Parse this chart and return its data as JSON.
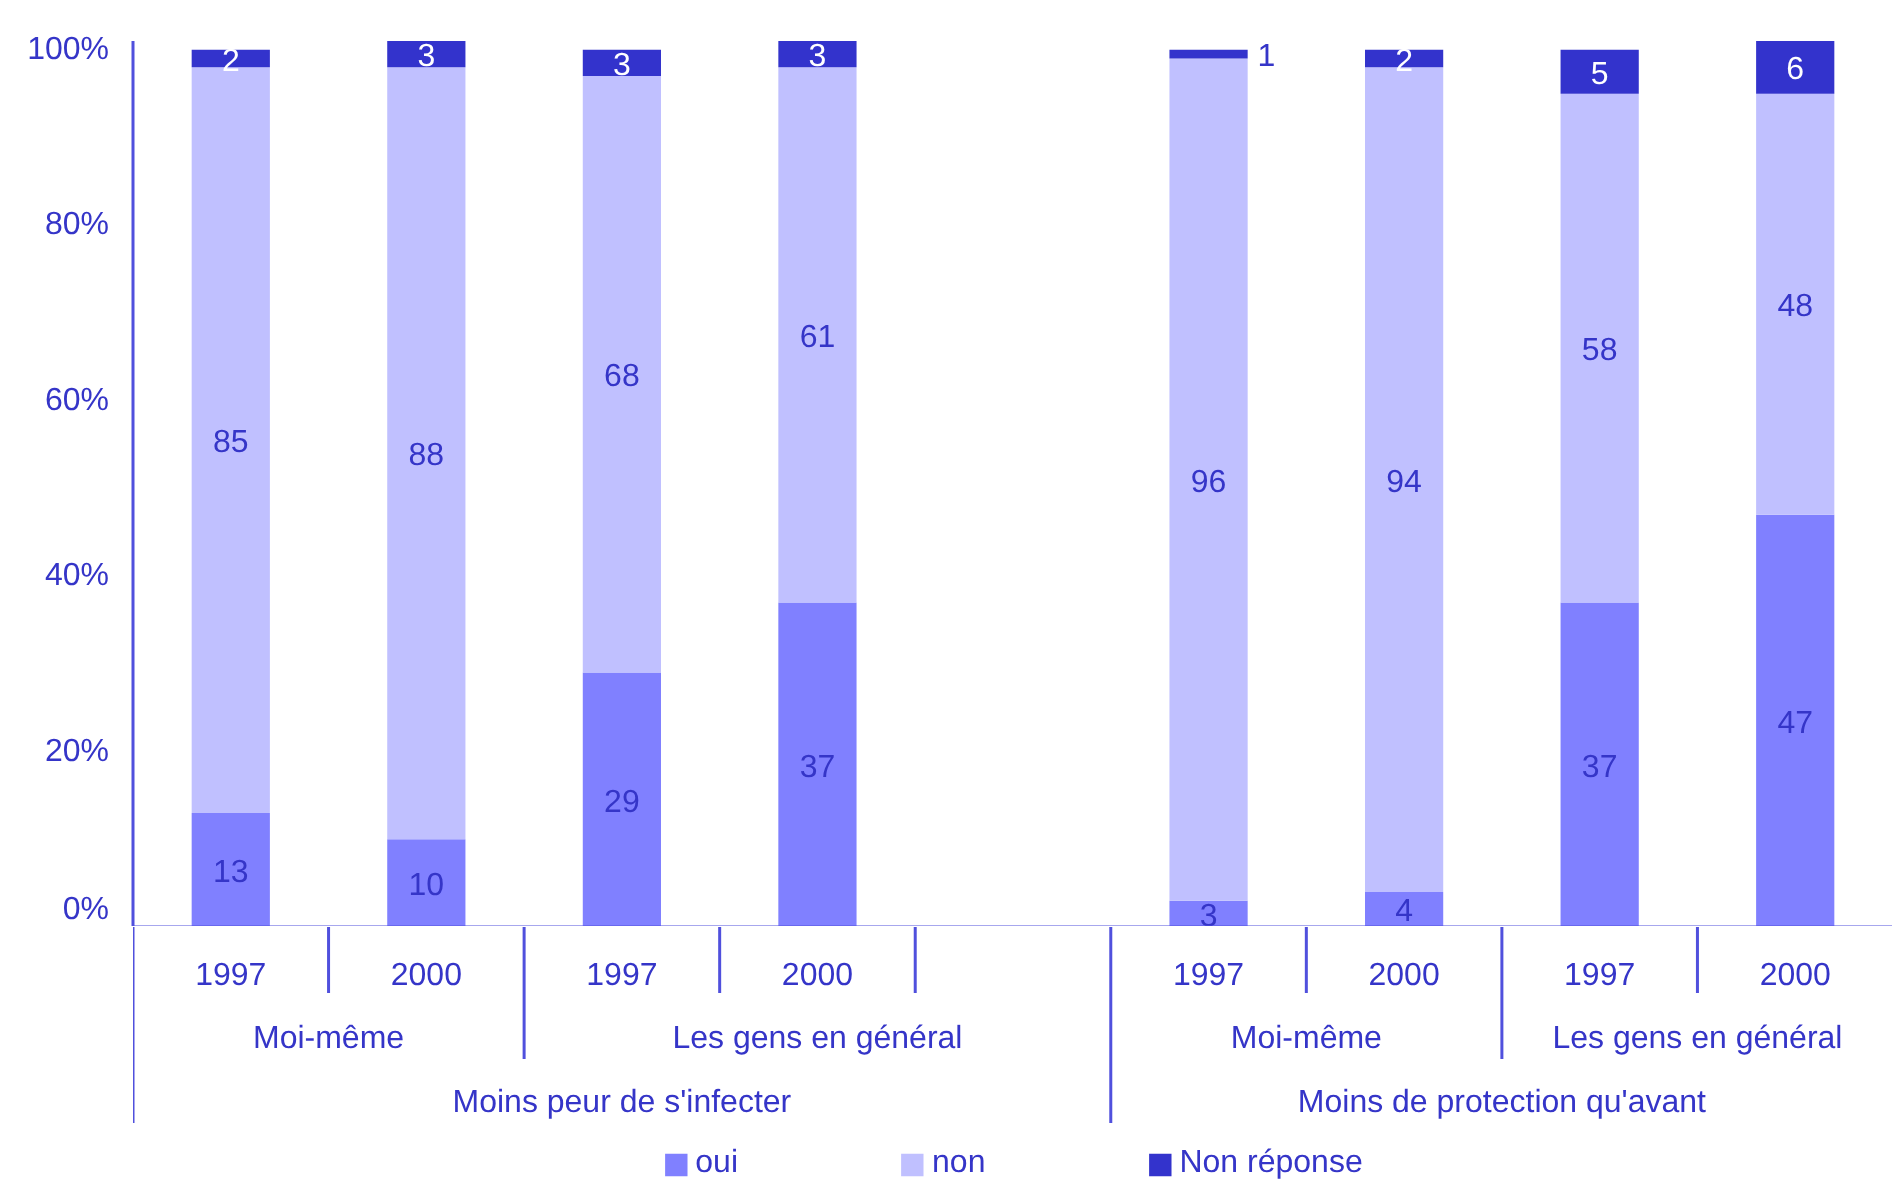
{
  "chart_data": {
    "type": "bar",
    "stacked": true,
    "categories": [
      "1997",
      "2000",
      "1997",
      "2000",
      null,
      "1997",
      "2000",
      "1997",
      "2000"
    ],
    "series": [
      {
        "name": "oui",
        "color": "#8080ff",
        "values": [
          13,
          10,
          29,
          37,
          null,
          3,
          4,
          37,
          47
        ]
      },
      {
        "name": "non",
        "color": "#c0c0ff",
        "values": [
          85,
          88,
          68,
          61,
          null,
          96,
          94,
          58,
          48
        ]
      },
      {
        "name": "Non réponse",
        "color": "#3333cc",
        "values": [
          2,
          3,
          3,
          3,
          null,
          1,
          2,
          5,
          6
        ]
      }
    ],
    "ylim": [
      0,
      101
    ],
    "yticks": [
      {
        "value": 0,
        "label": "0%"
      },
      {
        "value": 20,
        "label": "20%"
      },
      {
        "value": 40,
        "label": "40%"
      },
      {
        "value": 60,
        "label": "60%"
      },
      {
        "value": 80,
        "label": "80%"
      },
      {
        "value": 100,
        "label": "100%"
      }
    ],
    "data_labels": true,
    "legend": "bottom",
    "grid": false,
    "annotations": [
      "Moi-même",
      "Les gens en général",
      "Moi-même",
      "Les gens en général",
      "Moins peur de s'infecter",
      "Moins de protection qu'avant"
    ]
  }
}
